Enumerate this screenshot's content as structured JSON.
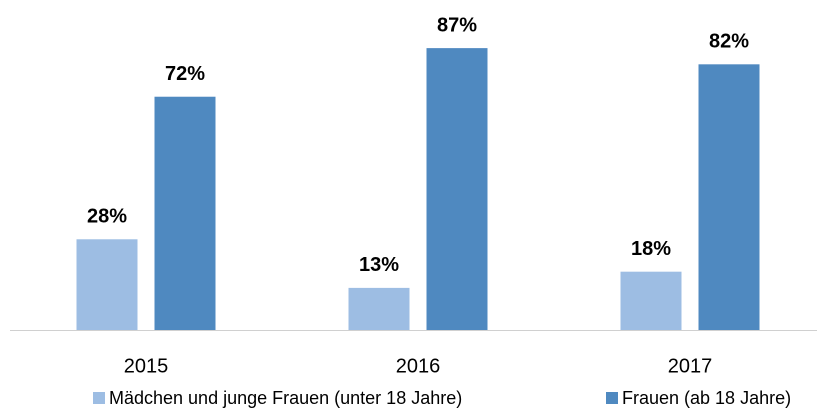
{
  "chart_data": {
    "type": "bar",
    "categories": [
      "2015",
      "2016",
      "2017"
    ],
    "series": [
      {
        "name": "Mädchen und junge Frauen (unter 18 Jahre)",
        "color": "#9dbde3",
        "values": [
          28,
          13,
          18
        ],
        "value_labels": [
          "28%",
          "13%",
          "18%"
        ]
      },
      {
        "name": "Frauen (ab 18 Jahre)",
        "color": "#4f89c0",
        "values": [
          72,
          87,
          82
        ],
        "value_labels": [
          "72%",
          "87%",
          "82%"
        ]
      }
    ]
  }
}
